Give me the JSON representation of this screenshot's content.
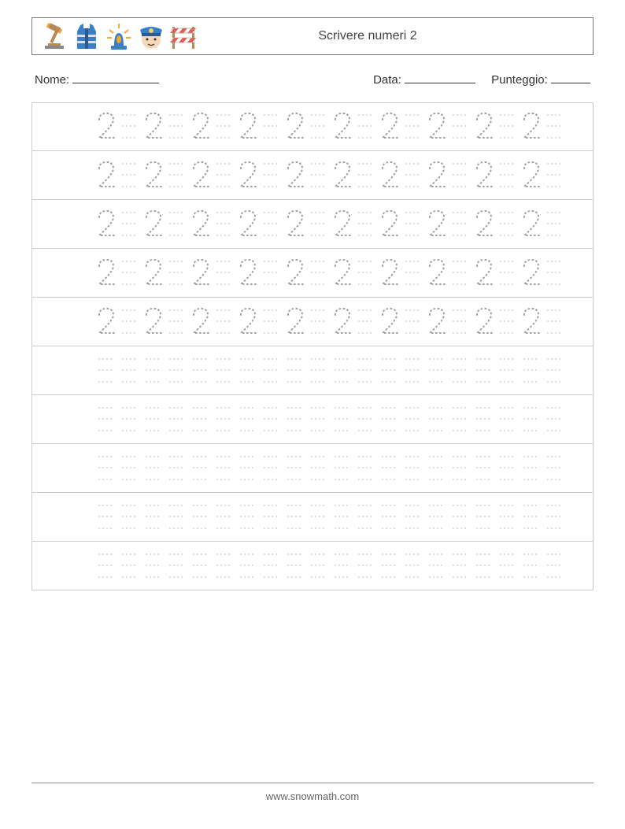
{
  "header": {
    "title": "Scrivere numeri 2",
    "icons": [
      "gavel-icon",
      "vest-icon",
      "siren-icon",
      "police-hat-icon",
      "barrier-icon"
    ]
  },
  "info": {
    "name_label": "Nome:",
    "date_label": "Data:",
    "score_label": "Punteggio:",
    "name_blank_width": 110,
    "date_blank_width": 90,
    "score_blank_width": 50
  },
  "worksheet": {
    "rows": 10,
    "filled_rows": 5,
    "cells_per_row": 10,
    "trace_digit": "2",
    "trace_color": "#9e9e9e",
    "trace_fontsize": 36,
    "guide_color": "#bbbbbb",
    "row_border_color": "#cccccc",
    "background_color": "#ffffff"
  },
  "footer": {
    "url": "www.snowmath.com"
  },
  "colors": {
    "text": "#333333",
    "border": "#777777",
    "icon_blue": "#3b7fc4",
    "icon_orange": "#f0a830",
    "icon_brown": "#b88a5a",
    "icon_red": "#e06050",
    "icon_skin": "#f8d8b8"
  }
}
